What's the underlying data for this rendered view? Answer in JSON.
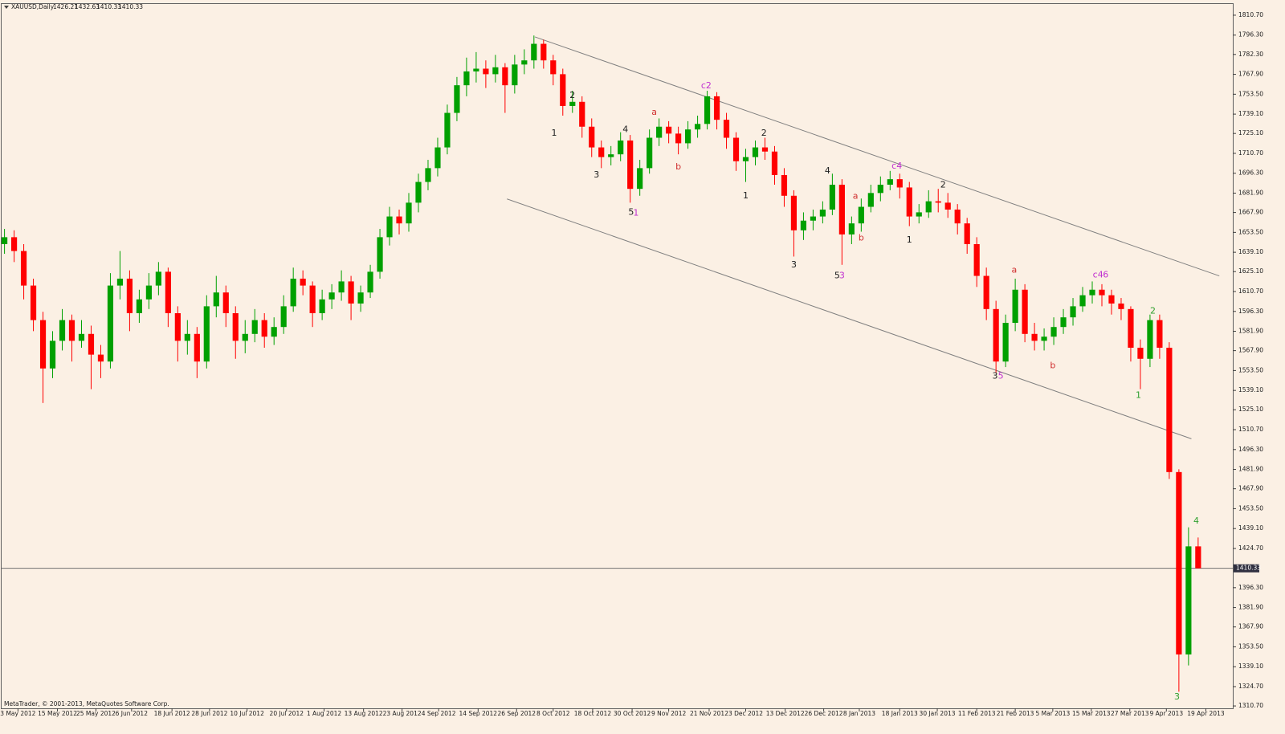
{
  "chart_data": {
    "type": "candlestick",
    "symbol": "XAUUSD,Daily",
    "footer": "MetaTrader, © 2001-2013, MetaQuotes Software Corp.",
    "bull_color": "#00a000",
    "bear_color": "#ff0000",
    "ylim": [
      1309,
      1818.8
    ],
    "xlim": [
      -0.3,
      127.6
    ],
    "yticks": [
      {
        "value": 1810.7,
        "label": "1810.70"
      },
      {
        "value": 1796.3,
        "label": "1796.30"
      },
      {
        "value": 1782.3,
        "label": "1782.30"
      },
      {
        "value": 1767.9,
        "label": "1767.90"
      },
      {
        "value": 1753.5,
        "label": "1753.50"
      },
      {
        "value": 1739.1,
        "label": "1739.10"
      },
      {
        "value": 1725.1,
        "label": "1725.10"
      },
      {
        "value": 1710.7,
        "label": "1710.70"
      },
      {
        "value": 1696.3,
        "label": "1696.30"
      },
      {
        "value": 1681.9,
        "label": "1681.90"
      },
      {
        "value": 1667.9,
        "label": "1667.90"
      },
      {
        "value": 1653.5,
        "label": "1653.50"
      },
      {
        "value": 1639.1,
        "label": "1639.10"
      },
      {
        "value": 1625.1,
        "label": "1625.10"
      },
      {
        "value": 1610.7,
        "label": "1610.70"
      },
      {
        "value": 1596.3,
        "label": "1596.30"
      },
      {
        "value": 1581.9,
        "label": "1581.90"
      },
      {
        "value": 1567.9,
        "label": "1567.90"
      },
      {
        "value": 1553.5,
        "label": "1553.50"
      },
      {
        "value": 1539.1,
        "label": "1539.10"
      },
      {
        "value": 1525.1,
        "label": "1525.10"
      },
      {
        "value": 1510.7,
        "label": "1510.70"
      },
      {
        "value": 1496.3,
        "label": "1496.30"
      },
      {
        "value": 1481.9,
        "label": "1481.90"
      },
      {
        "value": 1467.9,
        "label": "1467.90"
      },
      {
        "value": 1453.5,
        "label": "1453.50"
      },
      {
        "value": 1439.1,
        "label": "1439.10"
      },
      {
        "value": 1424.7,
        "label": "1424.70"
      },
      {
        "value": 1396.3,
        "label": "1396.30"
      },
      {
        "value": 1381.9,
        "label": "1381.90"
      },
      {
        "value": 1367.9,
        "label": "1367.90"
      },
      {
        "value": 1353.5,
        "label": "1353.50"
      },
      {
        "value": 1339.1,
        "label": "1339.10"
      },
      {
        "value": 1324.7,
        "label": "1324.70"
      },
      {
        "value": 1310.7,
        "label": "1310.70"
      }
    ],
    "xticks": [
      {
        "value": 1.4,
        "label": "3 May 2012"
      },
      {
        "value": 5.5,
        "label": "15 May 2012"
      },
      {
        "value": 9.5,
        "label": "25 May 2012"
      },
      {
        "value": 13.2,
        "label": "6 Jun 2012"
      },
      {
        "value": 17.4,
        "label": "18 Jun 2012"
      },
      {
        "value": 21.3,
        "label": "28 Jun 2012"
      },
      {
        "value": 25.2,
        "label": "10 Jul 2012"
      },
      {
        "value": 29.3,
        "label": "20 Jul 2012"
      },
      {
        "value": 33.2,
        "label": "1 Aug 2012"
      },
      {
        "value": 37.3,
        "label": "13 Aug 2012"
      },
      {
        "value": 41.3,
        "label": "23 Aug 2012"
      },
      {
        "value": 45.1,
        "label": "4 Sep 2012"
      },
      {
        "value": 49.2,
        "label": "14 Sep 2012"
      },
      {
        "value": 53.2,
        "label": "26 Sep 2012"
      },
      {
        "value": 57.0,
        "label": "8 Oct 2012"
      },
      {
        "value": 61.1,
        "label": "18 Oct 2012"
      },
      {
        "value": 65.2,
        "label": "30 Oct 2012"
      },
      {
        "value": 69.0,
        "label": "9 Nov 2012"
      },
      {
        "value": 73.2,
        "label": "21 Nov 2012"
      },
      {
        "value": 77.0,
        "label": "3 Dec 2012"
      },
      {
        "value": 81.1,
        "label": "13 Dec 2012"
      },
      {
        "value": 85.1,
        "label": "26 Dec 2012"
      },
      {
        "value": 88.8,
        "label": "8 Jan 2013"
      },
      {
        "value": 93.0,
        "label": "18 Jan 2013"
      },
      {
        "value": 96.9,
        "label": "30 Jan 2013"
      },
      {
        "value": 101.0,
        "label": "11 Feb 2013"
      },
      {
        "value": 105.0,
        "label": "21 Feb 2013"
      },
      {
        "value": 108.9,
        "label": "5 Mar 2013"
      },
      {
        "value": 112.9,
        "label": "15 Mar 2013"
      },
      {
        "value": 116.9,
        "label": "27 Mar 2013"
      },
      {
        "value": 120.7,
        "label": "9 Apr 2013"
      },
      {
        "value": 124.8,
        "label": "19 Apr 2013"
      }
    ],
    "ohlc": [
      [
        1645,
        1656,
        1638,
        1650
      ],
      [
        1650,
        1655,
        1632,
        1640
      ],
      [
        1640,
        1645,
        1605,
        1615
      ],
      [
        1615,
        1620,
        1582,
        1590
      ],
      [
        1590,
        1596,
        1530,
        1555
      ],
      [
        1555,
        1582,
        1548,
        1575
      ],
      [
        1575,
        1598,
        1568,
        1590
      ],
      [
        1590,
        1594,
        1560,
        1575
      ],
      [
        1575,
        1590,
        1570,
        1580
      ],
      [
        1580,
        1586,
        1540,
        1565
      ],
      [
        1565,
        1572,
        1548,
        1560
      ],
      [
        1560,
        1624,
        1555,
        1615
      ],
      [
        1615,
        1640,
        1605,
        1620
      ],
      [
        1620,
        1626,
        1582,
        1595
      ],
      [
        1595,
        1612,
        1588,
        1605
      ],
      [
        1605,
        1624,
        1598,
        1615
      ],
      [
        1615,
        1632,
        1608,
        1625
      ],
      [
        1625,
        1628,
        1585,
        1595
      ],
      [
        1595,
        1600,
        1560,
        1575
      ],
      [
        1575,
        1590,
        1565,
        1580
      ],
      [
        1580,
        1585,
        1548,
        1560
      ],
      [
        1560,
        1608,
        1555,
        1600
      ],
      [
        1600,
        1622,
        1592,
        1610
      ],
      [
        1610,
        1615,
        1585,
        1595
      ],
      [
        1595,
        1600,
        1562,
        1575
      ],
      [
        1575,
        1590,
        1566,
        1580
      ],
      [
        1580,
        1598,
        1574,
        1590
      ],
      [
        1590,
        1595,
        1570,
        1578
      ],
      [
        1578,
        1592,
        1572,
        1585
      ],
      [
        1585,
        1608,
        1580,
        1600
      ],
      [
        1600,
        1628,
        1596,
        1620
      ],
      [
        1620,
        1626,
        1608,
        1615
      ],
      [
        1615,
        1618,
        1585,
        1595
      ],
      [
        1595,
        1612,
        1590,
        1605
      ],
      [
        1605,
        1616,
        1598,
        1610
      ],
      [
        1610,
        1626,
        1604,
        1618
      ],
      [
        1618,
        1622,
        1590,
        1602
      ],
      [
        1602,
        1615,
        1596,
        1610
      ],
      [
        1610,
        1630,
        1606,
        1625
      ],
      [
        1625,
        1656,
        1620,
        1650
      ],
      [
        1650,
        1672,
        1644,
        1665
      ],
      [
        1665,
        1670,
        1652,
        1660
      ],
      [
        1660,
        1682,
        1654,
        1675
      ],
      [
        1675,
        1696,
        1668,
        1690
      ],
      [
        1690,
        1706,
        1684,
        1700
      ],
      [
        1700,
        1722,
        1694,
        1715
      ],
      [
        1715,
        1746,
        1710,
        1740
      ],
      [
        1740,
        1766,
        1734,
        1760
      ],
      [
        1760,
        1780,
        1752,
        1770
      ],
      [
        1770,
        1784,
        1762,
        1772
      ],
      [
        1772,
        1778,
        1758,
        1768
      ],
      [
        1768,
        1782,
        1762,
        1773
      ],
      [
        1773,
        1776,
        1740,
        1760
      ],
      [
        1760,
        1782,
        1754,
        1775
      ],
      [
        1775,
        1786,
        1768,
        1778
      ],
      [
        1778,
        1796,
        1772,
        1790
      ],
      [
        1790,
        1793,
        1772,
        1778
      ],
      [
        1778,
        1782,
        1760,
        1768
      ],
      [
        1768,
        1772,
        1738,
        1745
      ],
      [
        1745,
        1756,
        1740,
        1748
      ],
      [
        1748,
        1752,
        1722,
        1730
      ],
      [
        1730,
        1736,
        1708,
        1715
      ],
      [
        1715,
        1720,
        1700,
        1708
      ],
      [
        1708,
        1716,
        1702,
        1710
      ],
      [
        1710,
        1726,
        1705,
        1720
      ],
      [
        1720,
        1724,
        1675,
        1685
      ],
      [
        1685,
        1706,
        1680,
        1700
      ],
      [
        1700,
        1728,
        1696,
        1722
      ],
      [
        1722,
        1736,
        1716,
        1730
      ],
      [
        1730,
        1734,
        1718,
        1725
      ],
      [
        1725,
        1730,
        1710,
        1718
      ],
      [
        1718,
        1734,
        1714,
        1728
      ],
      [
        1728,
        1738,
        1722,
        1732
      ],
      [
        1732,
        1756,
        1728,
        1752
      ],
      [
        1752,
        1755,
        1728,
        1735
      ],
      [
        1735,
        1740,
        1714,
        1722
      ],
      [
        1722,
        1726,
        1698,
        1705
      ],
      [
        1705,
        1714,
        1690,
        1708
      ],
      [
        1708,
        1720,
        1702,
        1715
      ],
      [
        1715,
        1722,
        1706,
        1712
      ],
      [
        1712,
        1716,
        1688,
        1695
      ],
      [
        1695,
        1700,
        1672,
        1680
      ],
      [
        1680,
        1684,
        1636,
        1655
      ],
      [
        1655,
        1668,
        1648,
        1662
      ],
      [
        1662,
        1670,
        1655,
        1665
      ],
      [
        1665,
        1676,
        1660,
        1670
      ],
      [
        1670,
        1696,
        1666,
        1688
      ],
      [
        1688,
        1692,
        1630,
        1652
      ],
      [
        1652,
        1665,
        1645,
        1660
      ],
      [
        1660,
        1678,
        1654,
        1672
      ],
      [
        1672,
        1688,
        1668,
        1682
      ],
      [
        1682,
        1694,
        1676,
        1688
      ],
      [
        1688,
        1698,
        1684,
        1692
      ],
      [
        1692,
        1696,
        1678,
        1686
      ],
      [
        1686,
        1690,
        1658,
        1665
      ],
      [
        1665,
        1674,
        1660,
        1668
      ],
      [
        1668,
        1684,
        1664,
        1676
      ],
      [
        1676,
        1685,
        1668,
        1675
      ],
      [
        1675,
        1682,
        1664,
        1670
      ],
      [
        1670,
        1674,
        1652,
        1660
      ],
      [
        1660,
        1664,
        1638,
        1645
      ],
      [
        1645,
        1650,
        1614,
        1622
      ],
      [
        1622,
        1628,
        1590,
        1598
      ],
      [
        1598,
        1604,
        1552,
        1560
      ],
      [
        1560,
        1594,
        1556,
        1588
      ],
      [
        1588,
        1620,
        1582,
        1612
      ],
      [
        1612,
        1616,
        1574,
        1580
      ],
      [
        1580,
        1588,
        1568,
        1575
      ],
      [
        1575,
        1584,
        1568,
        1578
      ],
      [
        1578,
        1592,
        1572,
        1585
      ],
      [
        1585,
        1598,
        1580,
        1592
      ],
      [
        1592,
        1606,
        1586,
        1600
      ],
      [
        1600,
        1614,
        1596,
        1608
      ],
      [
        1608,
        1618,
        1602,
        1612
      ],
      [
        1612,
        1616,
        1600,
        1608
      ],
      [
        1608,
        1612,
        1594,
        1602
      ],
      [
        1602,
        1606,
        1590,
        1598
      ],
      [
        1598,
        1600,
        1560,
        1570
      ],
      [
        1570,
        1576,
        1540,
        1562
      ],
      [
        1562,
        1594,
        1556,
        1590
      ],
      [
        1590,
        1594,
        1562,
        1570
      ],
      [
        1570,
        1574,
        1475,
        1480
      ],
      [
        1480,
        1482,
        1321,
        1348
      ],
      [
        1348,
        1440,
        1340,
        1426.21
      ],
      [
        1426.21,
        1432.63,
        1410.33,
        1410.33
      ]
    ],
    "price_line": 1410.33,
    "trend_lines": [
      {
        "color": "#808080",
        "x": [
          55.1,
          126.2
        ],
        "y": [
          1795,
          1622
        ]
      },
      {
        "color": "#808080",
        "x": [
          52.2,
          123.3
        ],
        "y": [
          1677.7,
          1504.1
        ]
      }
    ],
    "annotations": [
      {
        "text": "1",
        "color": "#202020",
        "x": 57.1,
        "y": 1725.3
      },
      {
        "text": "2",
        "color": "#202020",
        "x": 59.0,
        "y": 1752.6
      },
      {
        "text": "3",
        "color": "#202020",
        "x": 61.5,
        "y": 1695.1
      },
      {
        "text": "4",
        "color": "#202020",
        "x": 64.5,
        "y": 1727.7
      },
      {
        "text": "5",
        "color": "#202020",
        "x": 65.1,
        "y": 1668
      },
      {
        "text": "1",
        "color": "#c030d0",
        "x": 65.6,
        "y": 1667.5
      },
      {
        "text": "a",
        "color": "#d03030",
        "x": 67.5,
        "y": 1740.4
      },
      {
        "text": "b",
        "color": "#d03030",
        "x": 70.0,
        "y": 1700.9
      },
      {
        "text": "c2",
        "color": "#c030d0",
        "x": 72.9,
        "y": 1759.6
      },
      {
        "text": "1",
        "color": "#202020",
        "x": 77.0,
        "y": 1680
      },
      {
        "text": "2",
        "color": "#202020",
        "x": 78.9,
        "y": 1725.3
      },
      {
        "text": "3",
        "color": "#202020",
        "x": 82.0,
        "y": 1630
      },
      {
        "text": "4",
        "color": "#202020",
        "x": 85.5,
        "y": 1698
      },
      {
        "text": "5",
        "color": "#202020",
        "x": 86.5,
        "y": 1622
      },
      {
        "text": "3",
        "color": "#c030d0",
        "x": 87.0,
        "y": 1622
      },
      {
        "text": "a",
        "color": "#d03030",
        "x": 88.4,
        "y": 1679.5
      },
      {
        "text": "b",
        "color": "#d03030",
        "x": 89.0,
        "y": 1649.3
      },
      {
        "text": "c4",
        "color": "#c030d0",
        "x": 92.7,
        "y": 1701.5
      },
      {
        "text": "1",
        "color": "#202020",
        "x": 94.0,
        "y": 1648
      },
      {
        "text": "2",
        "color": "#202020",
        "x": 97.5,
        "y": 1687.6
      },
      {
        "text": "3",
        "color": "#202020",
        "x": 102.9,
        "y": 1549.5
      },
      {
        "text": "5",
        "color": "#c030d0",
        "x": 103.5,
        "y": 1549.5
      },
      {
        "text": "a",
        "color": "#d03030",
        "x": 104.9,
        "y": 1626
      },
      {
        "text": "b",
        "color": "#d03030",
        "x": 108.9,
        "y": 1557
      },
      {
        "text": "c4",
        "color": "#c030d0",
        "x": 113.6,
        "y": 1622.5
      },
      {
        "text": "6",
        "color": "#c030d0",
        "x": 114.4,
        "y": 1622.5
      },
      {
        "text": "1",
        "color": "#30a030",
        "x": 117.8,
        "y": 1535.4
      },
      {
        "text": "2",
        "color": "#30a030",
        "x": 119.3,
        "y": 1596.4
      },
      {
        "text": "3",
        "color": "#30a030",
        "x": 121.8,
        "y": 1317
      },
      {
        "text": "4",
        "color": "#30a030",
        "x": 123.8,
        "y": 1444.3
      }
    ]
  }
}
